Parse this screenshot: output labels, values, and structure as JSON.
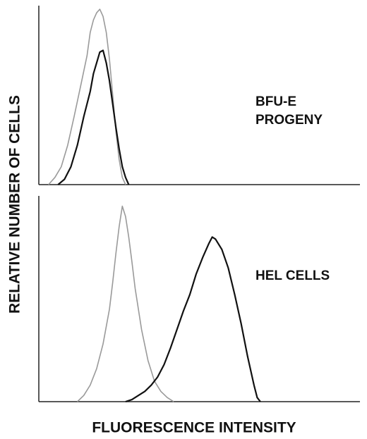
{
  "ylabel": "RELATIVE NUMBER OF CELLS",
  "xlabel": "FLUORESCENCE INTENSITY",
  "chart_data": [
    {
      "type": "line",
      "label_lines": [
        "BFU-E",
        "PROGENY"
      ],
      "xlim": [
        0,
        100
      ],
      "ylim": [
        0,
        100
      ],
      "series": [
        {
          "color": "#9a9a9a",
          "x": [
            3,
            5,
            7,
            9,
            11,
            13,
            15,
            16,
            17,
            18,
            19,
            20,
            21,
            22,
            23,
            24,
            25,
            26,
            27
          ],
          "values": [
            0,
            4,
            10,
            22,
            38,
            55,
            72,
            85,
            92,
            96,
            98,
            94,
            85,
            70,
            50,
            30,
            14,
            4,
            0
          ]
        },
        {
          "color": "#111111",
          "x": [
            6,
            8,
            10,
            12,
            14,
            16,
            17,
            18,
            19,
            20,
            21,
            22,
            23,
            24,
            25,
            26,
            27,
            28
          ],
          "values": [
            0,
            3,
            10,
            22,
            38,
            52,
            62,
            68,
            74,
            75,
            68,
            58,
            45,
            32,
            20,
            10,
            4,
            0
          ]
        }
      ]
    },
    {
      "type": "line",
      "label_lines": [
        "HEL CELLS"
      ],
      "xlim": [
        0,
        100
      ],
      "ylim": [
        0,
        100
      ],
      "series": [
        {
          "color": "#9a9a9a",
          "x": [
            12,
            14,
            16,
            18,
            20,
            22,
            23,
            24,
            25,
            26,
            27,
            28,
            29,
            30,
            32,
            34,
            36,
            38,
            40,
            42
          ],
          "values": [
            0,
            3,
            8,
            16,
            28,
            45,
            58,
            72,
            85,
            95,
            90,
            80,
            68,
            55,
            35,
            20,
            10,
            5,
            2,
            0
          ]
        },
        {
          "color": "#111111",
          "x": [
            27,
            29,
            31,
            33,
            35,
            37,
            39,
            41,
            43,
            45,
            47,
            49,
            51,
            53,
            54,
            55,
            57,
            59,
            61,
            63,
            65,
            67,
            68,
            69
          ],
          "values": [
            0,
            1,
            3,
            5,
            8,
            12,
            18,
            26,
            35,
            44,
            52,
            62,
            70,
            77,
            80,
            79,
            74,
            65,
            52,
            38,
            22,
            8,
            2,
            0
          ]
        }
      ]
    }
  ]
}
